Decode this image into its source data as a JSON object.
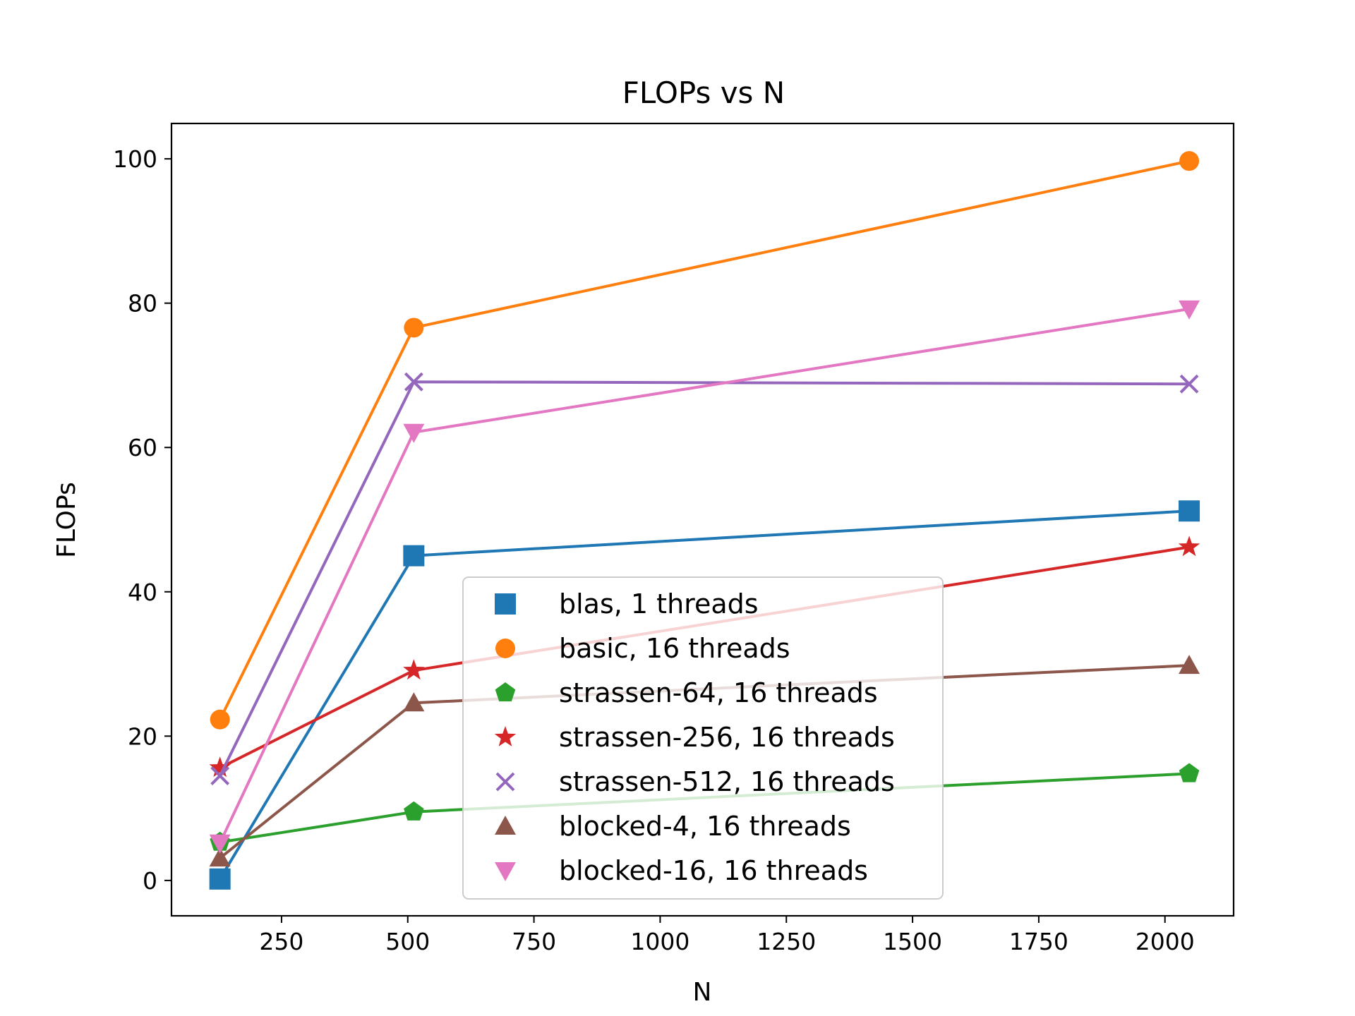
{
  "chart_data": {
    "type": "line",
    "title": "FLOPs vs N",
    "xlabel": "N",
    "ylabel": "FLOPs",
    "xlim": [
      32,
      2136
    ],
    "ylim": [
      -4.9,
      104.9
    ],
    "xticks": [
      250,
      500,
      750,
      1000,
      1250,
      1500,
      1750,
      2000
    ],
    "yticks": [
      0,
      20,
      40,
      60,
      80,
      100
    ],
    "x": [
      128,
      512,
      2048
    ],
    "grid": false,
    "legend_position": "lower-center",
    "series": [
      {
        "name": "blas, 1 threads",
        "values": [
          0.2,
          45.0,
          51.2
        ],
        "color": "#1f77b4",
        "marker": "square"
      },
      {
        "name": "basic, 16 threads",
        "values": [
          22.3,
          76.6,
          99.7
        ],
        "color": "#ff7f0e",
        "marker": "circle"
      },
      {
        "name": "strassen-64, 16 threads",
        "values": [
          5.3,
          9.5,
          14.8
        ],
        "color": "#2ca02c",
        "marker": "pentagon"
      },
      {
        "name": "strassen-256, 16 threads",
        "values": [
          15.6,
          29.1,
          46.2
        ],
        "color": "#d62728",
        "marker": "star"
      },
      {
        "name": "strassen-512, 16 threads",
        "values": [
          14.5,
          69.1,
          68.8
        ],
        "color": "#9467bd",
        "marker": "x"
      },
      {
        "name": "blocked-4, 16 threads",
        "values": [
          3.1,
          24.6,
          29.8
        ],
        "color": "#8c564b",
        "marker": "triangle-up"
      },
      {
        "name": "blocked-16, 16 threads",
        "values": [
          5.2,
          62.1,
          79.2
        ],
        "color": "#e377c2",
        "marker": "triangle-down"
      }
    ]
  }
}
